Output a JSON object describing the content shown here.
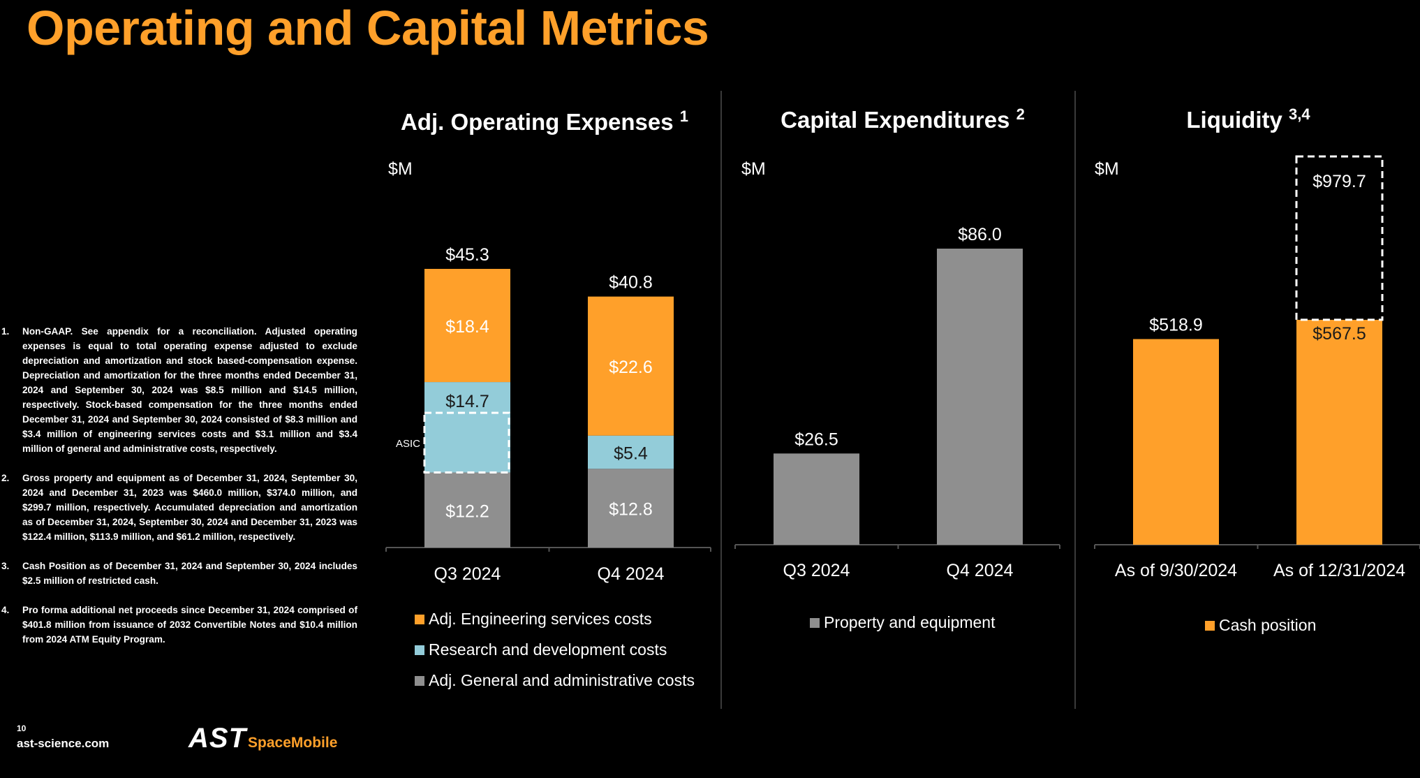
{
  "title": "Operating and Capital Metrics",
  "colors": {
    "accent": "#FFA02A",
    "orange": "#FFA02A",
    "light_blue": "#93CCD9",
    "gray": "#8F8F8F",
    "divider": "#3A3A3A"
  },
  "footnotes": [
    {
      "num": "1.",
      "text": "Non-GAAP. See appendix for a reconciliation. Adjusted operating expenses is equal to total operating expense adjusted to exclude depreciation and amortization and stock based-compensation expense. Depreciation and amortization for the three months ended December 31, 2024 and September 30, 2024 was $8.5 million and $14.5 million, respectively. Stock-based compensation for the three months ended December 31, 2024 and September 30, 2024 consisted of $8.3 million and $3.4 million of engineering services costs and $3.1 million and $3.4 million of general and administrative costs, respectively."
    },
    {
      "num": "2.",
      "text": "Gross property and equipment as of December 31, 2024, September 30, 2024 and December 31, 2023 was $460.0 million, $374.0 million, and $299.7 million, respectively. Accumulated depreciation and amortization as of December 31, 2024, September 30, 2024 and December 31, 2023 was $122.4 million, $113.9 million, and $61.2 million, respectively."
    },
    {
      "num": "3.",
      "text": "Cash Position as of December 31, 2024 and September 30, 2024 includes $2.5 million of restricted cash."
    },
    {
      "num": "4.",
      "text": "Pro forma additional net proceeds since December 31, 2024 comprised of $401.8 million from issuance of 2032 Convertible Notes and $10.4 million from 2024 ATM Equity Program."
    }
  ],
  "footer": {
    "page_number": "10",
    "website": "ast-science.com",
    "logo_main": "AST",
    "logo_sub": "SpaceMobile"
  },
  "chart_data": [
    {
      "type": "bar",
      "stacked": true,
      "title": "Adj. Operating Expenses",
      "title_superscript": "1",
      "unit_label": "$M",
      "categories": [
        "Q3 2024",
        "Q4 2024"
      ],
      "series": [
        {
          "name": "Adj. General and administrative costs",
          "color": "#8F8F8F",
          "values": [
            12.2,
            12.8
          ],
          "labels": [
            "$12.2",
            "$12.8"
          ]
        },
        {
          "name": "Research and development costs",
          "color": "#93CCD9",
          "values": [
            14.7,
            5.4
          ],
          "labels": [
            "$14.7",
            "$5.4"
          ]
        },
        {
          "name": "Adj. Engineering services costs",
          "color": "#FFA02A",
          "values": [
            18.4,
            22.6
          ],
          "labels": [
            "$18.4",
            "$22.6"
          ]
        }
      ],
      "legend_order": [
        "Adj. Engineering services costs",
        "Research and development costs",
        "Adj. General and administrative costs"
      ],
      "totals": [
        45.3,
        40.8
      ],
      "total_labels": [
        "$45.3",
        "$40.8"
      ],
      "annotation": {
        "label": "ASIC",
        "category": "Q3 2024",
        "series": "Research and development costs",
        "range": [
          12.2,
          21.9
        ]
      },
      "ylim": [
        0,
        45.3
      ]
    },
    {
      "type": "bar",
      "title": "Capital Expenditures",
      "title_superscript": "2",
      "unit_label": "$M",
      "categories": [
        "Q3 2024",
        "Q4 2024"
      ],
      "series": [
        {
          "name": "Property and equipment",
          "color": "#8F8F8F",
          "values": [
            26.5,
            86.0
          ],
          "labels": [
            "$26.5",
            "$86.0"
          ]
        }
      ],
      "ylim": [
        0,
        86.0
      ]
    },
    {
      "type": "bar",
      "title": "Liquidity",
      "title_superscript": "3,4",
      "unit_label": "$M",
      "categories": [
        "As of 9/30/2024",
        "As of 12/31/2024"
      ],
      "series": [
        {
          "name": "Cash position",
          "color": "#FFA02A",
          "values": [
            518.9,
            567.5
          ],
          "labels": [
            "$518.9",
            "$567.5"
          ]
        }
      ],
      "pro_forma": {
        "category": "As of 12/31/2024",
        "value": 979.7,
        "label": "$979.7",
        "style": "dashed-outline"
      },
      "ylim": [
        0,
        979.7
      ]
    }
  ]
}
